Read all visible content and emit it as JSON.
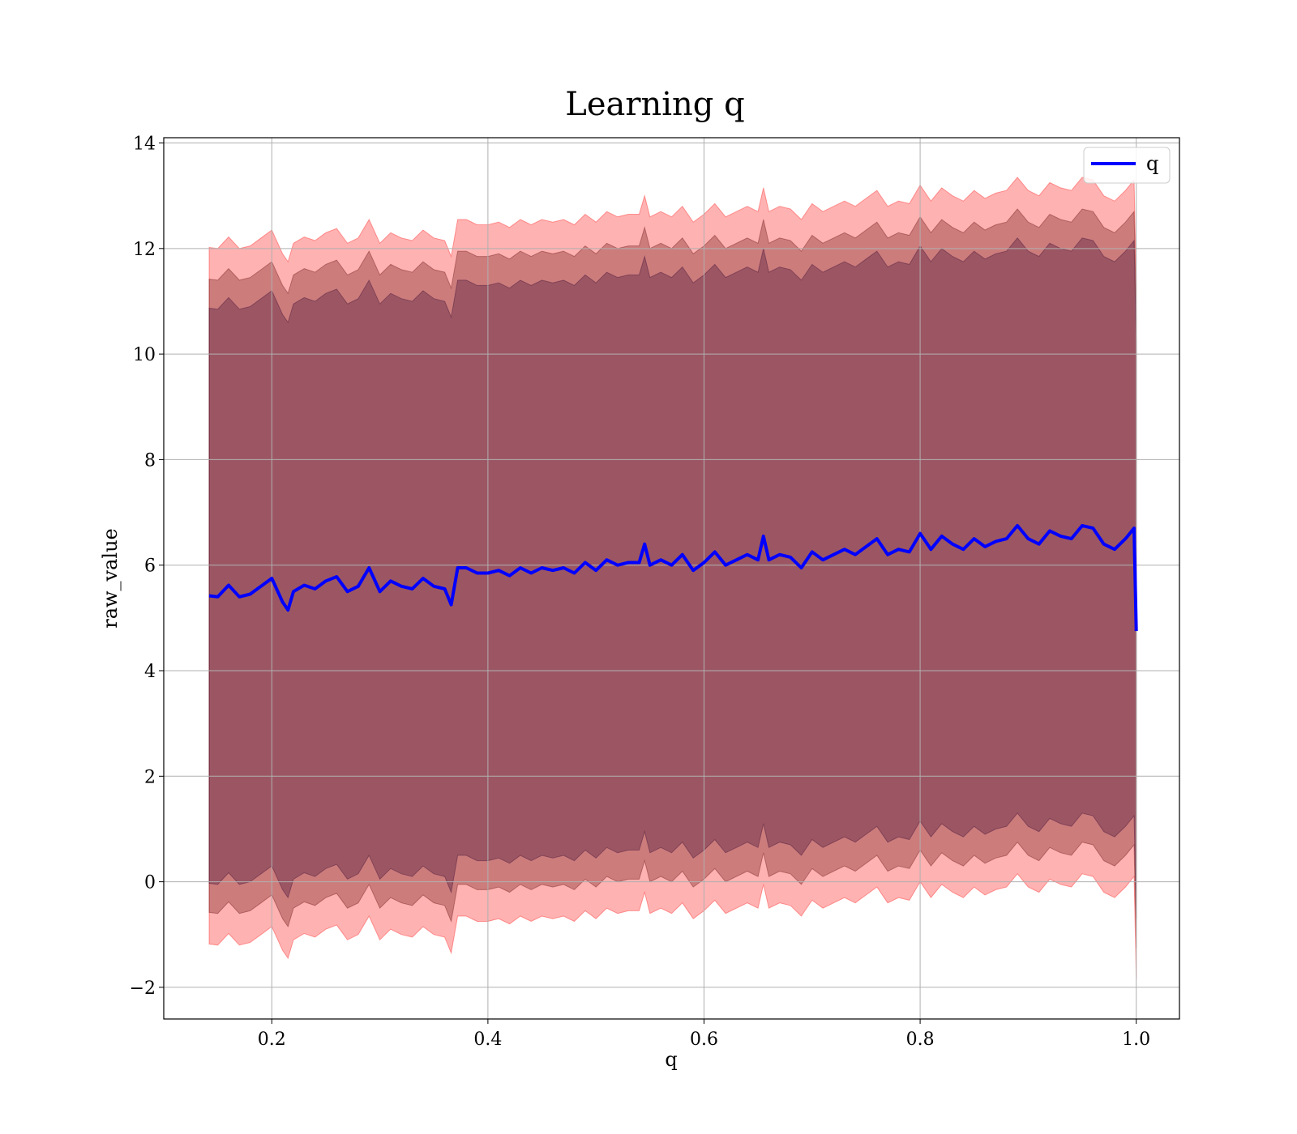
{
  "chart_data": {
    "type": "line",
    "title": "Learning q",
    "xlabel": "q",
    "ylabel": "raw_value",
    "xlim": [
      0.1,
      1.04
    ],
    "ylim": [
      -2.6,
      14.1
    ],
    "xticks": [
      0.2,
      0.4,
      0.6,
      0.8,
      1.0
    ],
    "xtick_labels": [
      "0.2",
      "0.4",
      "0.6",
      "0.8",
      "1.0"
    ],
    "yticks": [
      -2,
      0,
      2,
      4,
      6,
      8,
      10,
      12,
      14
    ],
    "ytick_labels": [
      "−2",
      "0",
      "2",
      "4",
      "6",
      "8",
      "10",
      "12",
      "14"
    ],
    "grid": true,
    "legend": {
      "position": "top-right",
      "entries": [
        "q"
      ]
    },
    "series": [
      {
        "name": "q",
        "color": "#0000ff",
        "x": [
          0.142,
          0.15,
          0.16,
          0.17,
          0.18,
          0.19,
          0.2,
          0.21,
          0.215,
          0.22,
          0.23,
          0.24,
          0.25,
          0.26,
          0.27,
          0.28,
          0.29,
          0.3,
          0.31,
          0.32,
          0.33,
          0.34,
          0.35,
          0.36,
          0.366,
          0.372,
          0.38,
          0.39,
          0.4,
          0.41,
          0.42,
          0.43,
          0.44,
          0.45,
          0.46,
          0.47,
          0.48,
          0.49,
          0.5,
          0.51,
          0.52,
          0.53,
          0.54,
          0.545,
          0.55,
          0.56,
          0.57,
          0.58,
          0.59,
          0.6,
          0.61,
          0.62,
          0.63,
          0.64,
          0.65,
          0.655,
          0.66,
          0.67,
          0.68,
          0.69,
          0.7,
          0.71,
          0.72,
          0.73,
          0.74,
          0.75,
          0.76,
          0.77,
          0.78,
          0.79,
          0.8,
          0.81,
          0.82,
          0.83,
          0.84,
          0.85,
          0.86,
          0.87,
          0.88,
          0.89,
          0.9,
          0.91,
          0.92,
          0.93,
          0.94,
          0.95,
          0.96,
          0.97,
          0.98,
          0.99,
          0.998,
          1.0
        ],
        "y": [
          5.42,
          5.4,
          5.62,
          5.4,
          5.45,
          5.6,
          5.75,
          5.3,
          5.15,
          5.5,
          5.62,
          5.55,
          5.7,
          5.78,
          5.5,
          5.6,
          5.95,
          5.5,
          5.7,
          5.6,
          5.55,
          5.75,
          5.6,
          5.55,
          5.25,
          5.95,
          5.95,
          5.85,
          5.85,
          5.9,
          5.8,
          5.95,
          5.85,
          5.95,
          5.9,
          5.95,
          5.85,
          6.05,
          5.9,
          6.1,
          6.0,
          6.05,
          6.05,
          6.4,
          6.0,
          6.1,
          6.0,
          6.2,
          5.9,
          6.05,
          6.25,
          6.0,
          6.1,
          6.2,
          6.1,
          6.55,
          6.1,
          6.2,
          6.15,
          5.95,
          6.25,
          6.1,
          6.2,
          6.3,
          6.2,
          6.35,
          6.5,
          6.2,
          6.3,
          6.25,
          6.6,
          6.3,
          6.55,
          6.4,
          6.3,
          6.5,
          6.35,
          6.45,
          6.5,
          6.75,
          6.5,
          6.4,
          6.65,
          6.55,
          6.5,
          6.75,
          6.7,
          6.4,
          6.3,
          6.5,
          6.7,
          4.75
        ]
      }
    ],
    "bands": [
      {
        "name": "",
        "color": "#ff0000",
        "opacity": 0.3,
        "offset": 6.6
      },
      {
        "name": "",
        "color": "#5a0000",
        "opacity": 0.3,
        "offset": 6.0
      },
      {
        "name": "",
        "color": "#2a002a",
        "opacity": 0.3,
        "offset": 5.45
      }
    ]
  }
}
